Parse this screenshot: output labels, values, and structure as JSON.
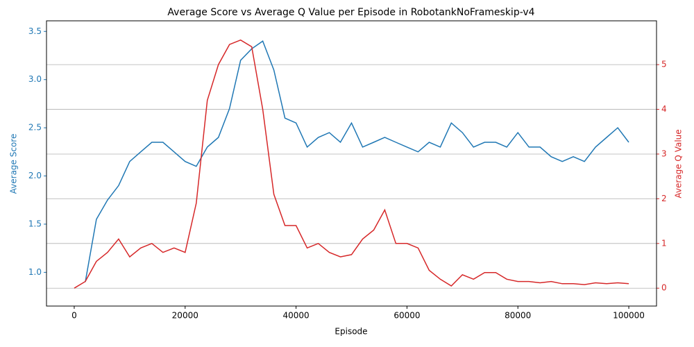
{
  "chart_data": {
    "type": "line",
    "title": "Average Score vs Average Q Value per Episode in RobotankNoFrameskip-v4",
    "x_label": "Episode",
    "y_label": "Average Score",
    "y2_label": "Average Q Value",
    "x": [
      0,
      2000,
      4000,
      6000,
      8000,
      10000,
      12000,
      14000,
      16000,
      18000,
      20000,
      22000,
      24000,
      26000,
      28000,
      30000,
      32000,
      34000,
      36000,
      38000,
      40000,
      42000,
      44000,
      46000,
      48000,
      50000,
      52000,
      54000,
      56000,
      58000,
      60000,
      62000,
      64000,
      66000,
      68000,
      70000,
      72000,
      74000,
      76000,
      78000,
      80000,
      82000,
      84000,
      86000,
      88000,
      90000,
      92000,
      94000,
      96000,
      98000,
      100000
    ],
    "series": [
      {
        "name": "Average Score",
        "color": "#1f77b4",
        "axis": "y",
        "values": [
          null,
          0.9,
          1.55,
          1.75,
          1.9,
          2.15,
          2.25,
          2.35,
          2.35,
          2.25,
          2.15,
          2.1,
          2.3,
          2.4,
          2.7,
          3.2,
          3.32,
          3.4,
          3.1,
          2.6,
          2.55,
          2.3,
          2.4,
          2.45,
          2.35,
          2.55,
          2.3,
          2.35,
          2.4,
          2.35,
          2.3,
          2.25,
          2.35,
          2.3,
          2.55,
          2.45,
          2.3,
          2.35,
          2.35,
          2.3,
          2.45,
          2.3,
          2.3,
          2.2,
          2.15,
          2.2,
          2.15,
          2.3,
          2.4,
          2.5,
          2.35
        ]
      },
      {
        "name": "Average Q Value",
        "color": "#d62728",
        "axis": "y2",
        "values": [
          0,
          0.15,
          0.6,
          0.8,
          1.1,
          0.7,
          0.9,
          1.0,
          0.8,
          0.9,
          0.8,
          1.9,
          4.2,
          5.0,
          5.45,
          5.55,
          5.4,
          4.0,
          2.1,
          1.4,
          1.4,
          0.9,
          1.0,
          0.8,
          0.7,
          0.75,
          1.1,
          1.3,
          1.75,
          1.0,
          1.0,
          0.9,
          0.4,
          0.2,
          0.05,
          0.3,
          0.2,
          0.35,
          0.35,
          0.2,
          0.15,
          0.15,
          0.12,
          0.15,
          0.1,
          0.1,
          0.08,
          0.12,
          0.1,
          0.12,
          0.1
        ]
      }
    ],
    "xlim": [
      -5000,
      105000
    ],
    "xticks": [
      0,
      20000,
      40000,
      60000,
      80000,
      100000
    ],
    "ylim": [
      0.65,
      3.61
    ],
    "yticks": [
      {
        "value": 1.0,
        "label": "1.0"
      },
      {
        "value": 1.5,
        "label": "1.5"
      },
      {
        "value": 2.0,
        "label": "2.0"
      },
      {
        "value": 2.5,
        "label": "2.5"
      },
      {
        "value": 3.0,
        "label": "3.0"
      },
      {
        "value": 3.5,
        "label": "3.5"
      }
    ],
    "y2lim": [
      -0.4,
      5.98
    ],
    "y2ticks": [
      0,
      1,
      2,
      3,
      4,
      5
    ],
    "grid": "y2"
  }
}
